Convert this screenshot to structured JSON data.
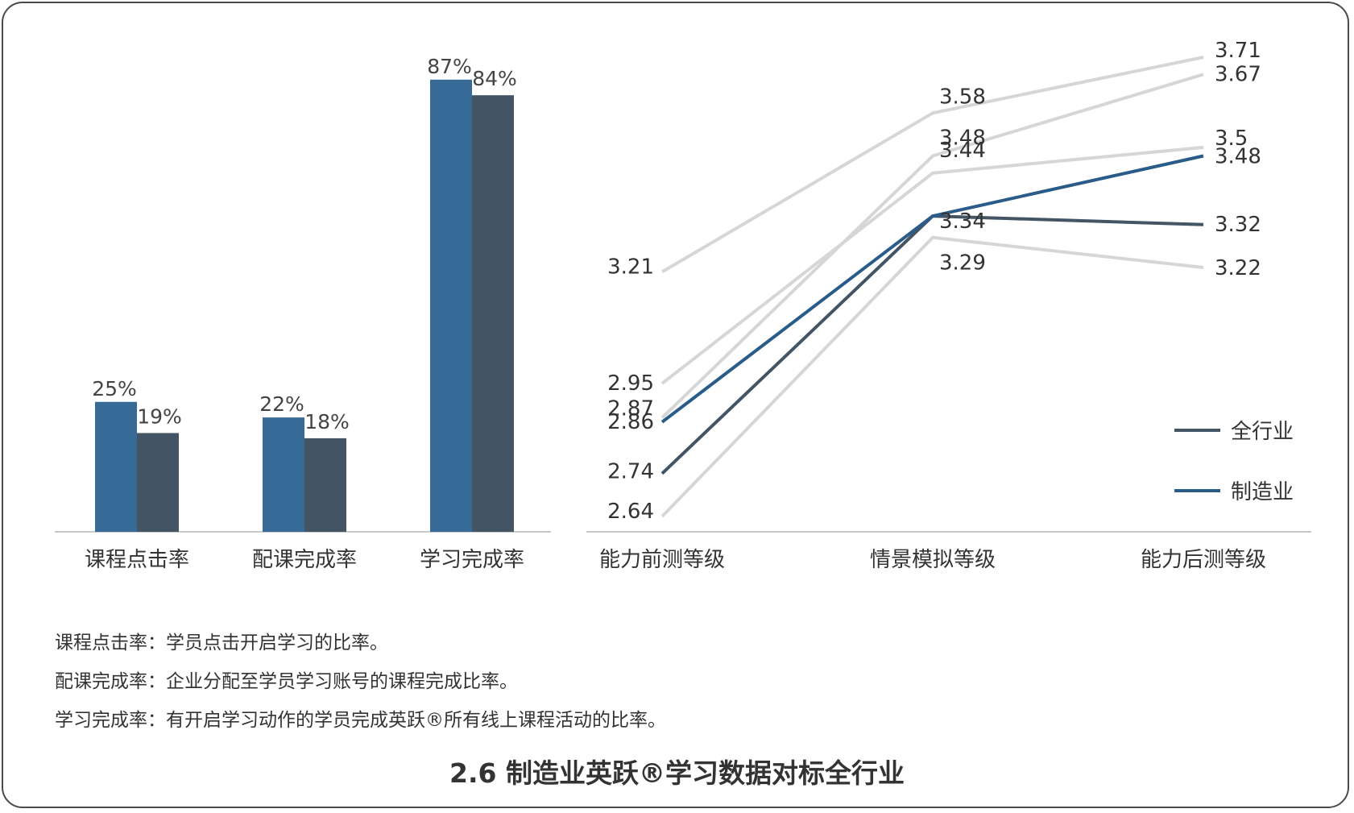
{
  "chart_data": [
    {
      "type": "bar",
      "categories": [
        "课程点击率",
        "配课完成率",
        "学习完成率"
      ],
      "series": [
        {
          "values": [
            25,
            22,
            87
          ],
          "labels": [
            "25%",
            "22%",
            "87%"
          ],
          "color": "#376a96"
        },
        {
          "values": [
            19,
            18,
            84
          ],
          "labels": [
            "19%",
            "18%",
            "84%"
          ],
          "color": "#435565"
        }
      ],
      "unit": "%",
      "ylim": [
        0,
        100
      ]
    },
    {
      "type": "line",
      "categories": [
        "能力前测等级",
        "情景模拟等级",
        "能力后测等级"
      ],
      "series": [
        {
          "name": "全行业",
          "values": [
            2.74,
            3.34,
            3.32
          ],
          "color": "#435565",
          "labels": [
            "2.74",
            "3.34",
            "3.32"
          ]
        },
        {
          "name": "制造业",
          "values": [
            2.86,
            3.34,
            3.48
          ],
          "color": "#2a5c8a",
          "labels": [
            "2.86",
            "",
            "3.48"
          ]
        },
        {
          "values": [
            3.21,
            3.58,
            3.71
          ],
          "color": "#d6d6d6",
          "labels": [
            "3.21",
            "3.58",
            "3.71"
          ]
        },
        {
          "values": [
            2.87,
            3.48,
            3.67
          ],
          "color": "#d6d6d6",
          "labels": [
            "2.87",
            "3.48",
            "3.67"
          ]
        },
        {
          "values": [
            2.95,
            3.44,
            3.5
          ],
          "color": "#d6d6d6",
          "labels": [
            "2.95",
            "3.44",
            "3.5"
          ]
        },
        {
          "values": [
            2.64,
            3.29,
            3.22
          ],
          "color": "#d6d6d6",
          "labels": [
            "2.64",
            "3.29",
            "3.22"
          ]
        }
      ],
      "legend_position": "bottom-right",
      "grid": false
    }
  ],
  "notes": [
    "课程点击率：学员点击开启学习的比率。",
    "配课完成率：企业分配至学员学习账号的课程完成比率。",
    "学习完成率：有开启学习动作的学员完成英跃®所有线上课程活动的比率。"
  ],
  "title": "2.6 制造业英跃®学习数据对标全行业"
}
